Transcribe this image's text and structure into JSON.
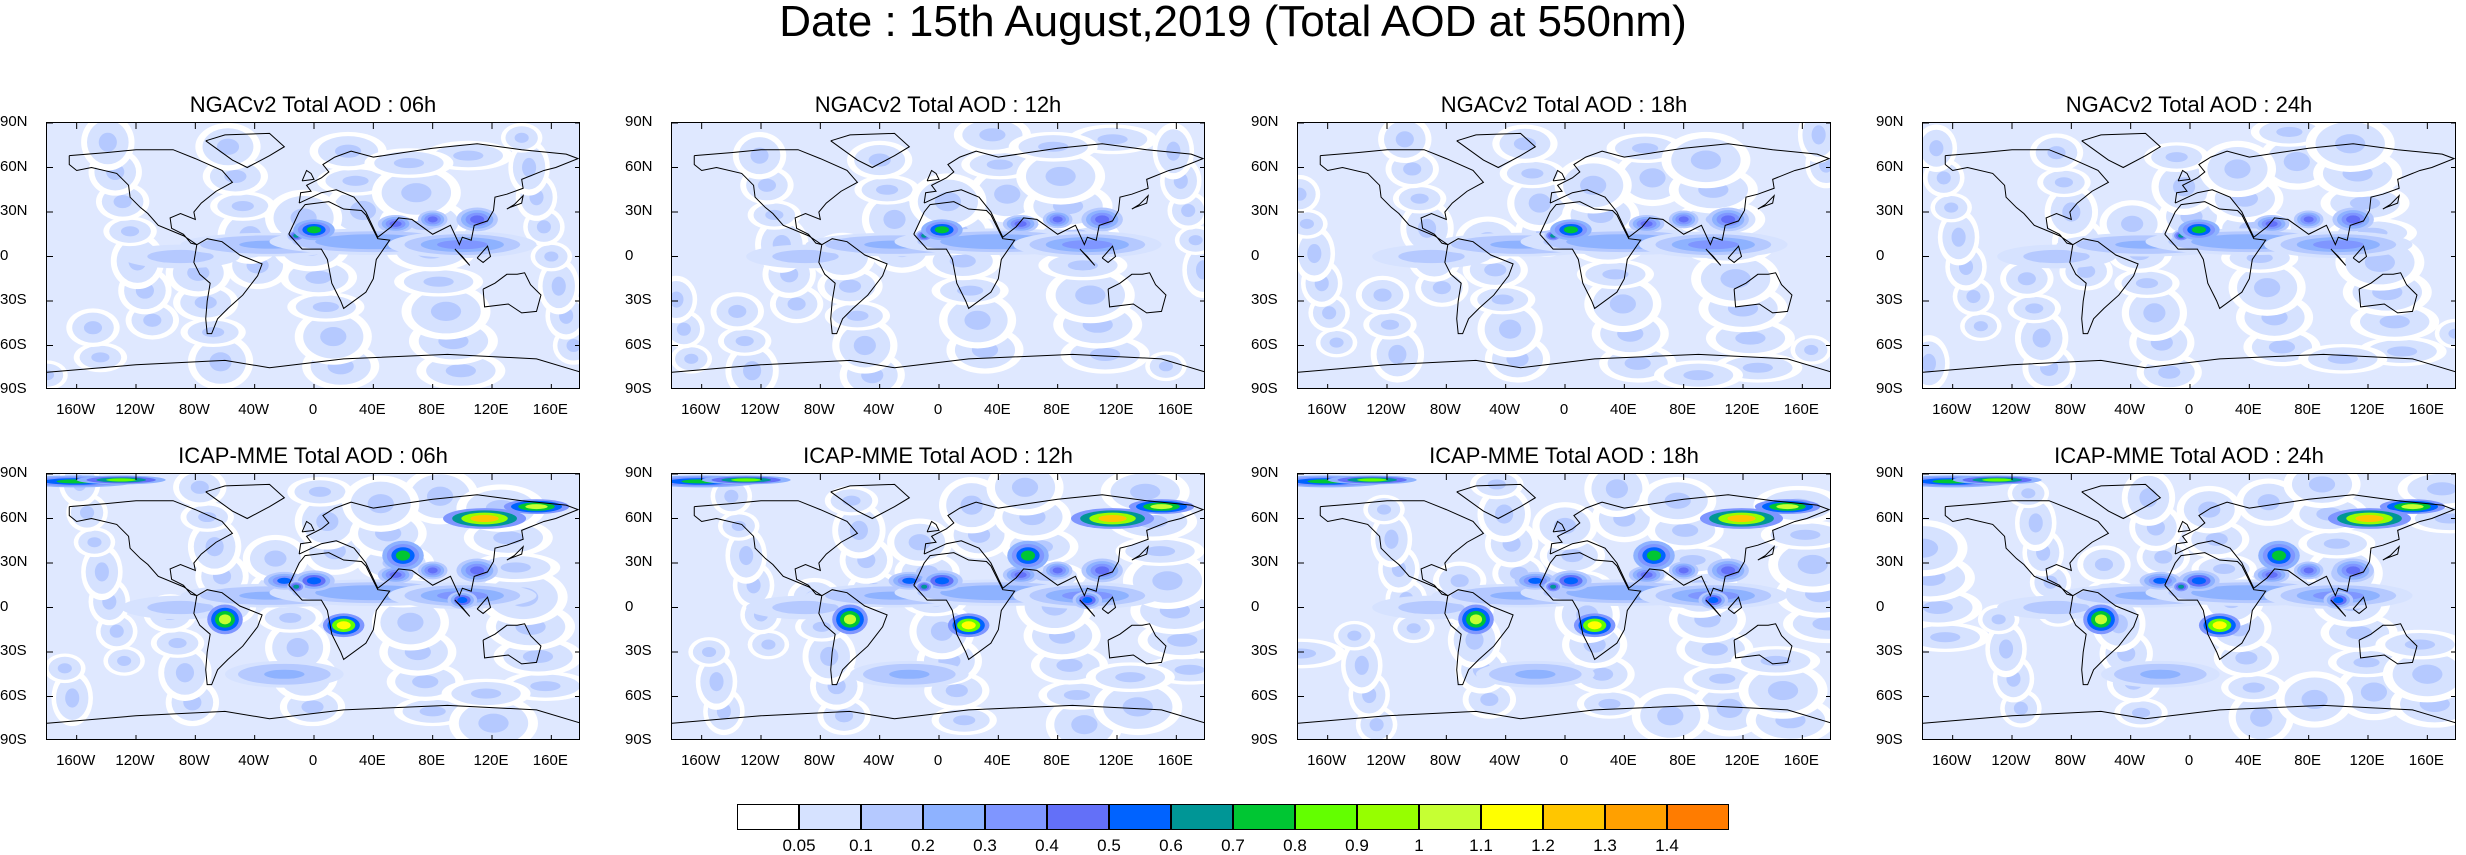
{
  "title": "Date : 15th August,2019 (Total AOD at 550nm)",
  "panels": [
    {
      "title": "NGACv2 Total AOD : 06h",
      "model": "NGACv2",
      "hour": "06h"
    },
    {
      "title": "NGACv2 Total AOD : 12h",
      "model": "NGACv2",
      "hour": "12h"
    },
    {
      "title": "NGACv2 Total AOD : 18h",
      "model": "NGACv2",
      "hour": "18h"
    },
    {
      "title": "NGACv2 Total AOD : 24h",
      "model": "NGACv2",
      "hour": "24h"
    },
    {
      "title": "ICAP-MME Total AOD : 06h",
      "model": "ICAP-MME",
      "hour": "06h"
    },
    {
      "title": "ICAP-MME Total AOD : 12h",
      "model": "ICAP-MME",
      "hour": "12h"
    },
    {
      "title": "ICAP-MME Total AOD : 18h",
      "model": "ICAP-MME",
      "hour": "18h"
    },
    {
      "title": "ICAP-MME Total AOD : 24h",
      "model": "ICAP-MME",
      "hour": "24h"
    }
  ],
  "lat_ticks": [
    "90N",
    "60N",
    "30N",
    "0",
    "30S",
    "60S",
    "90S"
  ],
  "lon_ticks": [
    "160W",
    "120W",
    "80W",
    "40W",
    "0",
    "40E",
    "80E",
    "120E",
    "160E"
  ],
  "colorbar": {
    "labels": [
      "0.05",
      "0.1",
      "0.2",
      "0.3",
      "0.4",
      "0.5",
      "0.6",
      "0.7",
      "0.8",
      "0.9",
      "1",
      "1.1",
      "1.2",
      "1.3",
      "1.4"
    ],
    "colors": [
      "#ffffff",
      "#d6e2ff",
      "#b5c9ff",
      "#8eb2ff",
      "#7f96ff",
      "#6370f8",
      "#0063ff",
      "#009696",
      "#00c633",
      "#63ff00",
      "#96ff00",
      "#c6ff33",
      "#ffff00",
      "#ffc600",
      "#ffa000",
      "#ff7c00",
      "#ff1900"
    ]
  }
}
